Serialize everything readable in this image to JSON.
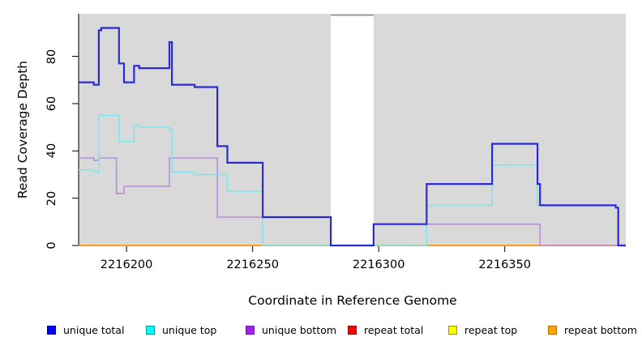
{
  "chart_data": {
    "type": "line",
    "subtype": "step-coverage",
    "title": "",
    "xlabel": "Coordinate in Reference Genome",
    "ylabel": "Read Coverage Depth",
    "xlim": [
      2216181,
      2216398
    ],
    "ylim": [
      0,
      98
    ],
    "x_ticks": [
      2216200,
      2216250,
      2216300,
      2216350
    ],
    "y_ticks": [
      0,
      20,
      40,
      60,
      80
    ],
    "grid": false,
    "legend_position": "bottom",
    "plot_bg": "#d9d9d9",
    "masked_region": {
      "x_start": 2216281,
      "x_end": 2216298,
      "color": "#ffffff"
    },
    "draw_order": [
      3,
      4,
      5,
      2,
      1,
      0
    ],
    "series": [
      {
        "id": "unique-total",
        "name": "unique total",
        "legend_fill": "#0000ff",
        "legend_border": "#00009a",
        "line_color": "#2a2ad6",
        "line_width": 2.2,
        "points": [
          [
            2216181,
            69
          ],
          [
            2216187,
            68
          ],
          [
            2216189,
            91
          ],
          [
            2216190,
            92
          ],
          [
            2216197,
            77
          ],
          [
            2216199,
            69
          ],
          [
            2216203,
            76
          ],
          [
            2216205,
            75
          ],
          [
            2216217,
            86
          ],
          [
            2216218,
            68
          ],
          [
            2216227,
            67
          ],
          [
            2216236,
            42
          ],
          [
            2216240,
            35
          ],
          [
            2216254,
            12
          ],
          [
            2216281,
            0
          ],
          [
            2216298,
            9
          ],
          [
            2216319,
            26
          ],
          [
            2216345,
            43
          ],
          [
            2216363,
            26
          ],
          [
            2216364,
            17
          ],
          [
            2216394,
            16
          ],
          [
            2216395,
            0
          ],
          [
            2216398,
            0
          ]
        ]
      },
      {
        "id": "unique-top",
        "name": "unique top",
        "legend_fill": "#00ffff",
        "legend_border": "#009a9a",
        "line_color": "#7fe6ec",
        "line_width": 1.6,
        "points": [
          [
            2216181,
            32
          ],
          [
            2216187,
            31
          ],
          [
            2216189,
            55
          ],
          [
            2216197,
            44
          ],
          [
            2216203,
            51
          ],
          [
            2216205,
            50
          ],
          [
            2216217,
            49
          ],
          [
            2216218,
            31
          ],
          [
            2216227,
            30
          ],
          [
            2216240,
            23
          ],
          [
            2216254,
            0
          ],
          [
            2216319,
            17
          ],
          [
            2216345,
            34
          ],
          [
            2216363,
            17
          ],
          [
            2216394,
            16
          ],
          [
            2216395,
            0
          ],
          [
            2216398,
            0
          ]
        ]
      },
      {
        "id": "unique-bottom",
        "name": "unique bottom",
        "legend_fill": "#a020f0",
        "legend_border": "#7a12b8",
        "line_color": "#b78fd9",
        "line_width": 1.6,
        "points": [
          [
            2216181,
            37
          ],
          [
            2216187,
            36
          ],
          [
            2216189,
            37
          ],
          [
            2216196,
            22
          ],
          [
            2216199,
            25
          ],
          [
            2216217,
            37
          ],
          [
            2216236,
            12
          ],
          [
            2216281,
            0
          ],
          [
            2216298,
            9
          ],
          [
            2216364,
            0
          ],
          [
            2216398,
            0
          ]
        ]
      },
      {
        "id": "repeat-total",
        "name": "repeat total",
        "legend_fill": "#ff0000",
        "legend_border": "#9a0000",
        "line_color": "#cc2222",
        "line_width": 1.6,
        "points": [
          [
            2216181,
            0
          ],
          [
            2216398,
            0
          ]
        ]
      },
      {
        "id": "repeat-top",
        "name": "repeat top",
        "legend_fill": "#ffff00",
        "legend_border": "#9a9a00",
        "line_color": "#e8e83a",
        "line_width": 1.6,
        "points": [
          [
            2216181,
            0
          ],
          [
            2216398,
            0
          ]
        ]
      },
      {
        "id": "repeat-bottom",
        "name": "repeat bottom",
        "legend_fill": "#ffa500",
        "legend_border": "#b86a00",
        "line_color": "#ff9d1c",
        "line_width": 2,
        "points": [
          [
            2216181,
            0
          ],
          [
            2216398,
            0
          ]
        ]
      }
    ]
  }
}
